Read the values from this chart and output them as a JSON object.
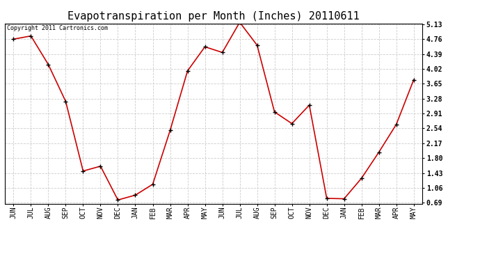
{
  "title": "Evapotranspiration per Month (Inches) 20110611",
  "copyright": "Copyright 2011 Cartronics.com",
  "months": [
    "JUN",
    "JUL",
    "AUG",
    "SEP",
    "OCT",
    "NOV",
    "DEC",
    "JAN",
    "FEB",
    "MAR",
    "APR",
    "MAY",
    "JUN",
    "JUL",
    "AUG",
    "SEP",
    "OCT",
    "NOV",
    "DEC",
    "JAN",
    "FEB",
    "MAR",
    "APR",
    "MAY"
  ],
  "values": [
    4.76,
    4.84,
    4.13,
    3.21,
    1.48,
    1.6,
    0.76,
    0.88,
    1.15,
    2.49,
    3.97,
    4.57,
    4.43,
    5.18,
    4.61,
    2.95,
    2.66,
    3.12,
    0.8,
    0.79,
    1.3,
    1.95,
    2.64,
    3.75
  ],
  "yticks": [
    0.69,
    1.06,
    1.43,
    1.8,
    2.17,
    2.54,
    2.91,
    3.28,
    3.65,
    4.02,
    4.39,
    4.76,
    5.13
  ],
  "ymin": 0.69,
  "ymax": 5.13,
  "line_color": "#cc0000",
  "marker": "+",
  "marker_color": "#000000",
  "bg_color": "#ffffff",
  "grid_color": "#cccccc",
  "title_fontsize": 11,
  "copyright_fontsize": 6,
  "tick_fontsize": 7,
  "ytick_fontsize": 7
}
